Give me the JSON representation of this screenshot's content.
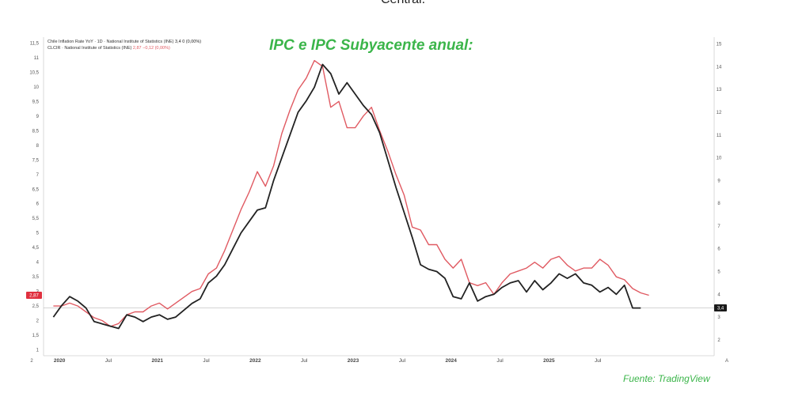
{
  "header_text": "Central.",
  "title": "IPC e IPC Subyacente anual:",
  "source": "Fuente: TradingView",
  "chart_data": {
    "type": "line",
    "legend": [
      {
        "name": "Chile Inflation Rate YoY · 1D · National Institute of Statistics (INE)",
        "value": "3,4",
        "change": "0 (0,00%)",
        "color": "#222222"
      },
      {
        "name": "CLCIR · National Institute of Statistics (INE)",
        "value": "2,87",
        "change": "−0,12 (0,00%)",
        "color": "#e05a62"
      }
    ],
    "x_ticks": [
      {
        "label": "2020",
        "x": 0.75,
        "major": true
      },
      {
        "label": "Jul",
        "x": 6.75,
        "major": false
      },
      {
        "label": "2021",
        "x": 12.75,
        "major": true
      },
      {
        "label": "Jul",
        "x": 18.75,
        "major": false
      },
      {
        "label": "2022",
        "x": 24.75,
        "major": true
      },
      {
        "label": "Jul",
        "x": 30.75,
        "major": false
      },
      {
        "label": "2023",
        "x": 36.75,
        "major": true
      },
      {
        "label": "Jul",
        "x": 42.75,
        "major": false
      },
      {
        "label": "2024",
        "x": 48.75,
        "major": true
      },
      {
        "label": "Jul",
        "x": 54.75,
        "major": false
      },
      {
        "label": "2025",
        "x": 60.75,
        "major": true
      },
      {
        "label": "Jul",
        "x": 66.75,
        "major": false
      }
    ],
    "x_range": [
      -1.2,
      81
    ],
    "left_axis": {
      "range": [
        0.8,
        11.7
      ],
      "ticks": [
        1,
        1.5,
        2,
        2.5,
        3,
        3.5,
        4,
        4.5,
        5,
        5.5,
        6,
        6.5,
        7,
        7.5,
        8,
        8.5,
        9,
        9.5,
        10,
        10.5,
        11,
        11.5
      ],
      "tick_labels": [
        "1",
        "1,5",
        "2",
        "2,5",
        "3",
        "3,5",
        "4",
        "4,5",
        "5",
        "5,5",
        "6",
        "6,5",
        "7",
        "7,5",
        "8",
        "8,5",
        "9",
        "9,5",
        "10",
        "10,5",
        "11",
        "11,5"
      ],
      "corner_label": "2"
    },
    "right_axis": {
      "range": [
        1.3,
        15.3
      ],
      "ticks": [
        2,
        3,
        4,
        5,
        6,
        7,
        8,
        9,
        10,
        11,
        12,
        13,
        14,
        15
      ],
      "tick_labels": [
        "2",
        "3",
        "4",
        "5",
        "6",
        "7",
        "8",
        "9",
        "10",
        "11",
        "12",
        "13",
        "14",
        "15"
      ],
      "corner_label": "A"
    },
    "last_value_labels": {
      "left": "2,87",
      "right": "3,4",
      "reference_line": 3.4
    },
    "series": [
      {
        "name": "Chile Inflation Rate YoY",
        "axis": "right",
        "color": "#222222",
        "x": [
          0,
          1,
          2,
          3,
          4,
          5,
          6,
          7,
          8,
          9,
          10,
          11,
          12,
          13,
          14,
          15,
          16,
          17,
          18,
          19,
          20,
          21,
          22,
          23,
          24,
          25,
          26,
          27,
          28,
          29,
          30,
          31,
          32,
          33,
          34,
          35,
          36,
          37,
          38,
          39,
          40,
          41,
          42,
          43,
          44,
          45,
          46,
          47,
          48,
          49,
          50,
          51,
          52,
          53,
          54,
          55,
          56,
          57,
          58,
          59,
          60,
          61,
          62,
          63,
          64,
          65,
          66,
          67,
          68,
          69,
          70,
          71,
          72
        ],
        "values": [
          3.0,
          3.5,
          3.9,
          3.7,
          3.4,
          2.8,
          2.7,
          2.6,
          2.5,
          3.1,
          3.0,
          2.8,
          3.0,
          3.1,
          2.9,
          3.0,
          3.3,
          3.6,
          3.8,
          4.5,
          4.8,
          5.3,
          6.0,
          6.7,
          7.2,
          7.7,
          7.8,
          9.0,
          10.0,
          11.0,
          12.0,
          12.5,
          13.1,
          14.1,
          13.7,
          12.8,
          13.3,
          12.8,
          12.3,
          11.9,
          11.1,
          9.9,
          8.7,
          7.6,
          6.5,
          5.3,
          5.1,
          5.0,
          4.7,
          3.9,
          3.8,
          4.5,
          3.7,
          3.9,
          4.0,
          4.3,
          4.5,
          4.6,
          4.1,
          4.6,
          4.2,
          4.5,
          4.9,
          4.7,
          4.9,
          4.5,
          4.4,
          4.1,
          4.3,
          4.0,
          4.4,
          3.4,
          3.4
        ]
      },
      {
        "name": "CLCIR",
        "axis": "left",
        "color": "#e05a62",
        "x": [
          0,
          1,
          2,
          3,
          4,
          5,
          6,
          7,
          8,
          9,
          10,
          11,
          12,
          13,
          14,
          15,
          16,
          17,
          18,
          19,
          20,
          21,
          22,
          23,
          24,
          25,
          26,
          27,
          28,
          29,
          30,
          31,
          32,
          33,
          34,
          35,
          36,
          37,
          38,
          39,
          40,
          41,
          42,
          43,
          44,
          45,
          46,
          47,
          48,
          49,
          50,
          51,
          52,
          53,
          54,
          55,
          56,
          57,
          58,
          59,
          60,
          61,
          62,
          63,
          64,
          65,
          66,
          67,
          68,
          69,
          70,
          71,
          72,
          73
        ],
        "values": [
          2.5,
          2.5,
          2.6,
          2.5,
          2.3,
          2.1,
          2.0,
          1.8,
          1.9,
          2.2,
          2.3,
          2.3,
          2.5,
          2.6,
          2.4,
          2.6,
          2.8,
          3.0,
          3.1,
          3.6,
          3.8,
          4.4,
          5.1,
          5.8,
          6.4,
          7.1,
          6.6,
          7.3,
          8.4,
          9.2,
          9.9,
          10.3,
          10.9,
          10.7,
          9.3,
          9.5,
          8.6,
          8.6,
          9.0,
          9.3,
          8.5,
          7.8,
          7.0,
          6.3,
          5.2,
          5.1,
          4.6,
          4.6,
          4.1,
          3.8,
          4.1,
          3.3,
          3.2,
          3.3,
          2.9,
          3.3,
          3.6,
          3.7,
          3.8,
          4.0,
          3.8,
          4.1,
          4.2,
          3.9,
          3.7,
          3.8,
          3.8,
          4.1,
          3.9,
          3.5,
          3.4,
          3.1,
          2.95,
          2.87
        ]
      }
    ]
  }
}
